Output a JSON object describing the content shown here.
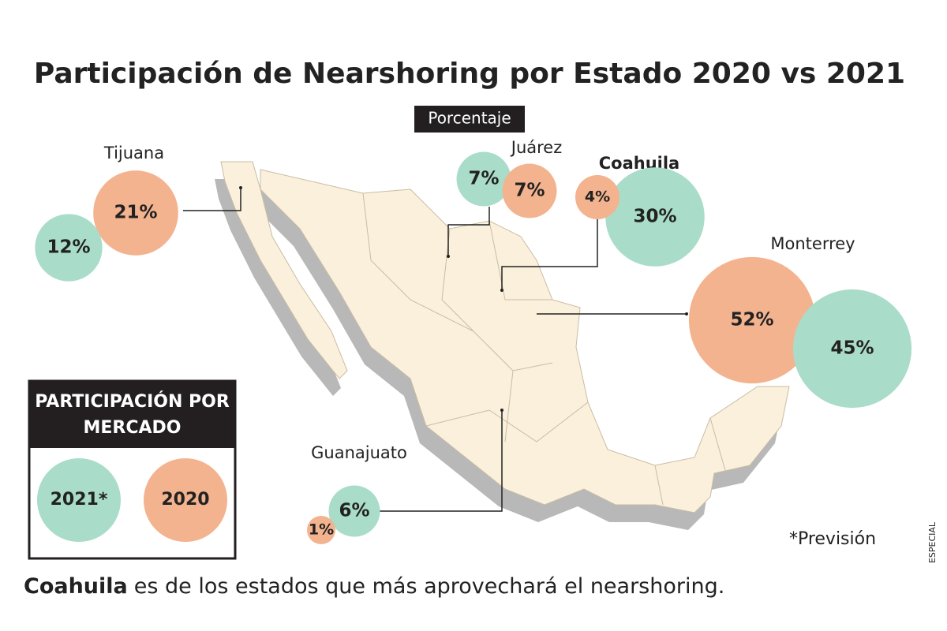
{
  "chart_data": {
    "type": "bubble",
    "title": "Participación de Nearshoring por Estado 2020 vs 2021",
    "subtitle": "Porcentaje",
    "categories": [
      "Tijuana",
      "Juárez",
      "Coahuila",
      "Monterrey",
      "Guanajuato"
    ],
    "series": [
      {
        "name": "2021*",
        "color": "#a9dcc9",
        "values": [
          12,
          7,
          30,
          45,
          6
        ],
        "value_labels": [
          "12%",
          "7%",
          "30%",
          "45%",
          "6%"
        ]
      },
      {
        "name": "2020",
        "color": "#f4b38f",
        "values": [
          21,
          7,
          4,
          52,
          1
        ],
        "value_labels": [
          "21%",
          "7%",
          "4%",
          "52%",
          "1%"
        ]
      }
    ],
    "legend_title": "PARTICIPACIÓN POR MERCADO",
    "note": "*Previsión",
    "credit": "ESPECIAL",
    "caption": {
      "bold": "Coahuila",
      "text": "es de los estados que más aprovechará el nearshoring."
    }
  }
}
